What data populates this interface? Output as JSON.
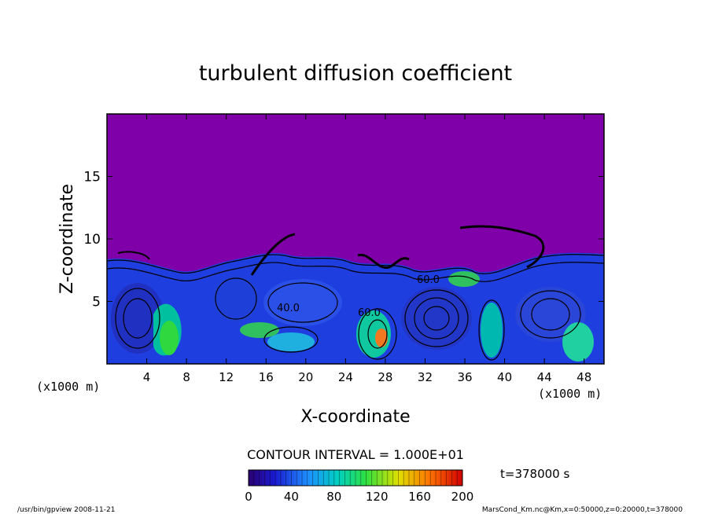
{
  "chart_data": {
    "type": "heatmap",
    "title": "turbulent diffusion coefficient",
    "xlabel": "X-coordinate",
    "ylabel": "Z-coordinate",
    "x_unit_left": "(x1000 m)",
    "x_unit_right": "(x1000 m)",
    "xlim": [
      0,
      50
    ],
    "ylim": [
      0,
      20
    ],
    "x_ticks": [
      "4",
      "8",
      "12",
      "16",
      "20",
      "24",
      "28",
      "32",
      "36",
      "40",
      "44",
      "48"
    ],
    "x_tick_values": [
      4,
      8,
      12,
      16,
      20,
      24,
      28,
      32,
      36,
      40,
      44,
      48
    ],
    "y_ticks": [
      "5",
      "10",
      "15"
    ],
    "y_tick_values": [
      5,
      10,
      15
    ],
    "contour_interval": "CONTOUR INTERVAL = 1.000E+01",
    "contour_labels": [
      "40.0",
      "60.0",
      "60.0"
    ],
    "background_color": "#7f00a8",
    "colorbar": {
      "ticks": [
        "0",
        "40",
        "80",
        "120",
        "160",
        "200"
      ],
      "tick_values": [
        0,
        40,
        80,
        120,
        160,
        200
      ],
      "range": [
        0,
        200
      ]
    },
    "time_label": "t=378000 s"
  },
  "footer": {
    "left": "/usr/bin/gpview  2008-11-21",
    "right": "MarsCond_Km.nc@Km,x=0:50000,z=0:20000,t=378000"
  }
}
